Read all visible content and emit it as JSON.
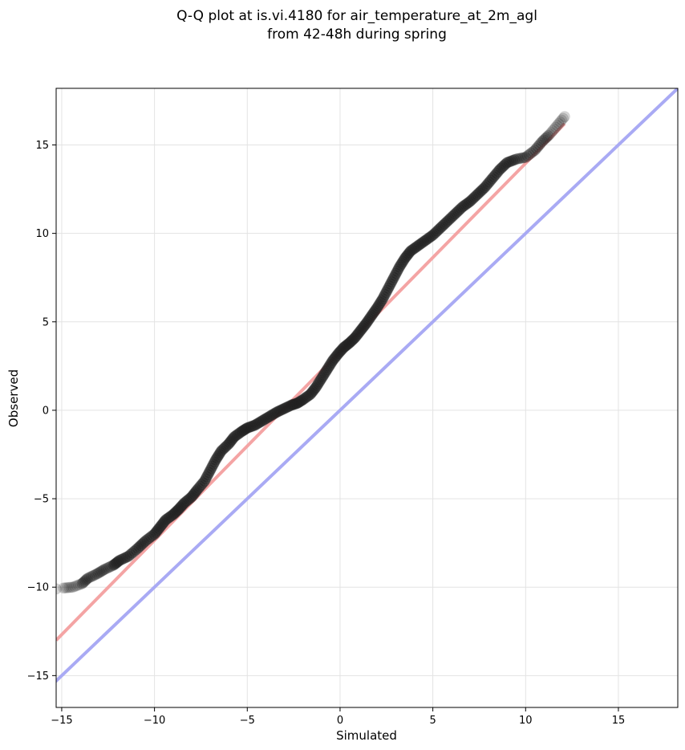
{
  "chart_data": {
    "type": "scatter",
    "title_line1": "Q-Q plot at is.vi.4180 for air_temperature_at_2m_agl",
    "title_line2": "from 42-48h during spring",
    "xlabel": "Simulated",
    "ylabel": "Observed",
    "xlim": [
      -15.3,
      18.2
    ],
    "ylim": [
      -16.8,
      18.2
    ],
    "xticks": [
      -15,
      -10,
      -5,
      0,
      5,
      10,
      15
    ],
    "yticks": [
      -15,
      -10,
      -5,
      0,
      5,
      10,
      15
    ],
    "xtick_labels": [
      "−15",
      "−10",
      "−5",
      "0",
      "5",
      "10",
      "15"
    ],
    "ytick_labels": [
      "−15",
      "−10",
      "−5",
      "0",
      "5",
      "10",
      "15"
    ],
    "grid": true,
    "colors": {
      "points": "#222222",
      "fit_line": "#f4a4a4",
      "identity_line": "#a9aaf4"
    },
    "series": [
      {
        "kind": "quantiles",
        "x": [
          -15.3,
          -14.9,
          -14.4,
          -13.9,
          -13.6,
          -13.1,
          -12.7,
          -12.2,
          -11.9,
          -11.4,
          -10.9,
          -10.5,
          -10.0,
          -9.7,
          -9.4,
          -9.0,
          -8.7,
          -8.4,
          -8.0,
          -7.7,
          -7.3,
          -7.0,
          -6.7,
          -6.4,
          -6.0,
          -5.7,
          -5.3,
          -5.0,
          -4.6,
          -4.2,
          -3.8,
          -3.4,
          -3.0,
          -2.6,
          -2.3,
          -2.0,
          -1.6,
          -1.3,
          -1.0,
          -0.7,
          -0.4,
          -0.1,
          0.2,
          0.5,
          0.8,
          1.1,
          1.4,
          1.7,
          2.0,
          2.3,
          2.6,
          2.9,
          3.2,
          3.5,
          3.8,
          4.2,
          4.6,
          5.0,
          5.4,
          5.8,
          6.2,
          6.6,
          7.0,
          7.4,
          7.8,
          8.2,
          8.6,
          9.0,
          9.5,
          10.0,
          10.5,
          10.9,
          11.3,
          11.7,
          12.1
        ],
        "y": [
          -10.1,
          -10.05,
          -10.0,
          -9.8,
          -9.5,
          -9.25,
          -9.0,
          -8.75,
          -8.5,
          -8.25,
          -7.8,
          -7.4,
          -7.0,
          -6.6,
          -6.2,
          -5.9,
          -5.6,
          -5.25,
          -4.9,
          -4.5,
          -4.0,
          -3.4,
          -2.8,
          -2.3,
          -1.9,
          -1.5,
          -1.2,
          -1.0,
          -0.85,
          -0.6,
          -0.35,
          -0.1,
          0.1,
          0.3,
          0.4,
          0.6,
          0.9,
          1.3,
          1.8,
          2.3,
          2.8,
          3.2,
          3.55,
          3.8,
          4.1,
          4.5,
          4.9,
          5.35,
          5.8,
          6.3,
          6.9,
          7.5,
          8.1,
          8.6,
          9.0,
          9.3,
          9.6,
          9.9,
          10.3,
          10.7,
          11.1,
          11.5,
          11.8,
          12.2,
          12.6,
          13.1,
          13.6,
          14.0,
          14.2,
          14.3,
          14.7,
          15.2,
          15.6,
          16.1,
          16.6
        ]
      },
      {
        "kind": "fit_line",
        "x": [
          -15.3,
          12.1
        ],
        "y": [
          -13.0,
          16.2
        ]
      },
      {
        "kind": "identity_line",
        "x": [
          -16.8,
          18.2
        ],
        "y": [
          -16.8,
          18.2
        ]
      }
    ]
  }
}
